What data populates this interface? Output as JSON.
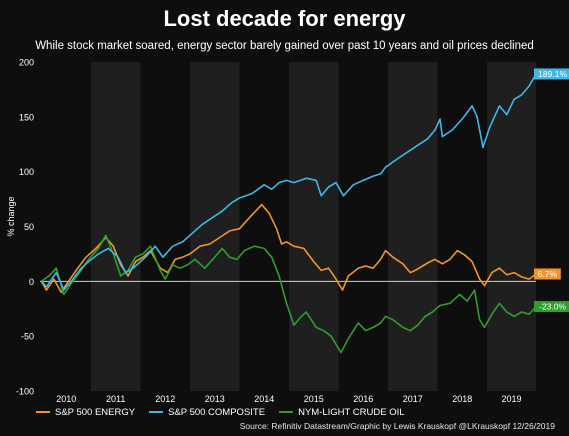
{
  "header": {
    "title": "Lost decade for energy",
    "subtitle": "While stock market soared, energy sector barely gained over past 10 years and oil prices declined"
  },
  "source": "Source: Refinitiv Datastream/Graphic by Lewis Krauskopf @LKrauskopf  12/26/2019",
  "colors": {
    "background": "#0e0e0e",
    "band": "#1f1f1f",
    "zero_line": "#cfcfcf",
    "energy": "#f0952e",
    "composite": "#3fb8e6",
    "crude": "#2f9e2f"
  },
  "chart_data": {
    "type": "line",
    "title": "Lost decade for energy",
    "subtitle": "While stock market soared, energy sector barely gained over past 10 years and oil prices declined",
    "xlabel": "",
    "ylabel": "% change",
    "xlim": [
      2009.97,
      2019.99
    ],
    "ylim": [
      -100,
      200
    ],
    "yticks": [
      200,
      150,
      100,
      50,
      0,
      -50,
      -100
    ],
    "xticks": [
      "2010",
      "2011",
      "2012",
      "2013",
      "2014",
      "2015",
      "2016",
      "2017",
      "2018",
      "2019"
    ],
    "shaded_years": [
      "2011",
      "2013",
      "2015",
      "2017",
      "2019"
    ],
    "zero_line": true,
    "legend_position": "bottom",
    "series": [
      {
        "name": "S&P 500 ENERGY",
        "color_key": "energy",
        "end_label": "6.7%",
        "points": [
          [
            2010.0,
            0
          ],
          [
            2010.1,
            -8
          ],
          [
            2010.25,
            2
          ],
          [
            2010.4,
            -10
          ],
          [
            2010.5,
            -3
          ],
          [
            2010.7,
            10
          ],
          [
            2010.9,
            22
          ],
          [
            2011.1,
            30
          ],
          [
            2011.3,
            40
          ],
          [
            2011.45,
            32
          ],
          [
            2011.6,
            15
          ],
          [
            2011.75,
            5
          ],
          [
            2011.9,
            18
          ],
          [
            2012.05,
            22
          ],
          [
            2012.2,
            28
          ],
          [
            2012.4,
            12
          ],
          [
            2012.55,
            8
          ],
          [
            2012.7,
            20
          ],
          [
            2012.85,
            22
          ],
          [
            2013.0,
            25
          ],
          [
            2013.2,
            32
          ],
          [
            2013.4,
            34
          ],
          [
            2013.6,
            40
          ],
          [
            2013.8,
            46
          ],
          [
            2014.0,
            48
          ],
          [
            2014.2,
            58
          ],
          [
            2014.45,
            70
          ],
          [
            2014.6,
            62
          ],
          [
            2014.75,
            48
          ],
          [
            2014.85,
            34
          ],
          [
            2014.95,
            36
          ],
          [
            2015.1,
            32
          ],
          [
            2015.3,
            30
          ],
          [
            2015.5,
            18
          ],
          [
            2015.65,
            10
          ],
          [
            2015.8,
            12
          ],
          [
            2015.95,
            2
          ],
          [
            2016.08,
            -8
          ],
          [
            2016.2,
            5
          ],
          [
            2016.4,
            12
          ],
          [
            2016.55,
            14
          ],
          [
            2016.7,
            12
          ],
          [
            2016.85,
            20
          ],
          [
            2016.95,
            28
          ],
          [
            2017.1,
            22
          ],
          [
            2017.3,
            16
          ],
          [
            2017.45,
            8
          ],
          [
            2017.55,
            10
          ],
          [
            2017.7,
            14
          ],
          [
            2017.85,
            18
          ],
          [
            2017.95,
            20
          ],
          [
            2018.1,
            16
          ],
          [
            2018.25,
            20
          ],
          [
            2018.4,
            28
          ],
          [
            2018.55,
            24
          ],
          [
            2018.7,
            18
          ],
          [
            2018.85,
            2
          ],
          [
            2018.95,
            -4
          ],
          [
            2019.1,
            8
          ],
          [
            2019.25,
            12
          ],
          [
            2019.4,
            6
          ],
          [
            2019.55,
            8
          ],
          [
            2019.7,
            4
          ],
          [
            2019.85,
            2
          ],
          [
            2019.99,
            6.7
          ]
        ]
      },
      {
        "name": "S&P 500 COMPOSITE",
        "color_key": "composite",
        "end_label": "189.1%",
        "points": [
          [
            2010.0,
            0
          ],
          [
            2010.1,
            -5
          ],
          [
            2010.3,
            8
          ],
          [
            2010.45,
            -8
          ],
          [
            2010.6,
            0
          ],
          [
            2010.8,
            12
          ],
          [
            2010.95,
            18
          ],
          [
            2011.15,
            25
          ],
          [
            2011.35,
            30
          ],
          [
            2011.55,
            22
          ],
          [
            2011.7,
            8
          ],
          [
            2011.85,
            12
          ],
          [
            2011.95,
            16
          ],
          [
            2012.1,
            22
          ],
          [
            2012.3,
            32
          ],
          [
            2012.45,
            22
          ],
          [
            2012.65,
            32
          ],
          [
            2012.85,
            36
          ],
          [
            2013.0,
            42
          ],
          [
            2013.25,
            52
          ],
          [
            2013.45,
            58
          ],
          [
            2013.65,
            64
          ],
          [
            2013.85,
            72
          ],
          [
            2014.0,
            76
          ],
          [
            2014.25,
            80
          ],
          [
            2014.5,
            88
          ],
          [
            2014.65,
            84
          ],
          [
            2014.8,
            90
          ],
          [
            2014.95,
            92
          ],
          [
            2015.1,
            90
          ],
          [
            2015.35,
            94
          ],
          [
            2015.55,
            92
          ],
          [
            2015.65,
            78
          ],
          [
            2015.8,
            86
          ],
          [
            2015.95,
            90
          ],
          [
            2016.1,
            78
          ],
          [
            2016.3,
            88
          ],
          [
            2016.5,
            92
          ],
          [
            2016.7,
            96
          ],
          [
            2016.85,
            98
          ],
          [
            2016.95,
            104
          ],
          [
            2017.2,
            112
          ],
          [
            2017.4,
            118
          ],
          [
            2017.6,
            124
          ],
          [
            2017.8,
            130
          ],
          [
            2017.95,
            138
          ],
          [
            2018.05,
            148
          ],
          [
            2018.1,
            132
          ],
          [
            2018.3,
            138
          ],
          [
            2018.5,
            148
          ],
          [
            2018.7,
            160
          ],
          [
            2018.8,
            150
          ],
          [
            2018.92,
            122
          ],
          [
            2019.05,
            140
          ],
          [
            2019.25,
            160
          ],
          [
            2019.4,
            152
          ],
          [
            2019.55,
            166
          ],
          [
            2019.7,
            170
          ],
          [
            2019.85,
            178
          ],
          [
            2019.99,
            189.1
          ]
        ]
      },
      {
        "name": "NYM-LIGHT CRUDE OIL",
        "color_key": "crude",
        "end_label": "-23.0%",
        "points": [
          [
            2010.0,
            0
          ],
          [
            2010.15,
            5
          ],
          [
            2010.3,
            12
          ],
          [
            2010.45,
            -12
          ],
          [
            2010.6,
            -2
          ],
          [
            2010.8,
            10
          ],
          [
            2010.95,
            20
          ],
          [
            2011.15,
            30
          ],
          [
            2011.3,
            42
          ],
          [
            2011.45,
            25
          ],
          [
            2011.6,
            5
          ],
          [
            2011.75,
            10
          ],
          [
            2011.9,
            22
          ],
          [
            2012.05,
            25
          ],
          [
            2012.2,
            32
          ],
          [
            2012.4,
            10
          ],
          [
            2012.5,
            2
          ],
          [
            2012.65,
            15
          ],
          [
            2012.8,
            12
          ],
          [
            2012.95,
            15
          ],
          [
            2013.1,
            20
          ],
          [
            2013.3,
            12
          ],
          [
            2013.5,
            22
          ],
          [
            2013.65,
            30
          ],
          [
            2013.8,
            22
          ],
          [
            2013.95,
            20
          ],
          [
            2014.1,
            28
          ],
          [
            2014.3,
            32
          ],
          [
            2014.5,
            30
          ],
          [
            2014.65,
            22
          ],
          [
            2014.8,
            5
          ],
          [
            2014.95,
            -20
          ],
          [
            2015.1,
            -40
          ],
          [
            2015.25,
            -32
          ],
          [
            2015.35,
            -28
          ],
          [
            2015.55,
            -42
          ],
          [
            2015.7,
            -45
          ],
          [
            2015.85,
            -50
          ],
          [
            2016.05,
            -65
          ],
          [
            2016.2,
            -52
          ],
          [
            2016.4,
            -38
          ],
          [
            2016.55,
            -45
          ],
          [
            2016.7,
            -42
          ],
          [
            2016.85,
            -38
          ],
          [
            2016.95,
            -32
          ],
          [
            2017.1,
            -35
          ],
          [
            2017.3,
            -42
          ],
          [
            2017.45,
            -45
          ],
          [
            2017.6,
            -40
          ],
          [
            2017.75,
            -32
          ],
          [
            2017.9,
            -28
          ],
          [
            2018.05,
            -22
          ],
          [
            2018.25,
            -20
          ],
          [
            2018.45,
            -12
          ],
          [
            2018.6,
            -18
          ],
          [
            2018.75,
            -8
          ],
          [
            2018.85,
            -35
          ],
          [
            2018.95,
            -42
          ],
          [
            2019.1,
            -30
          ],
          [
            2019.25,
            -20
          ],
          [
            2019.4,
            -28
          ],
          [
            2019.55,
            -32
          ],
          [
            2019.7,
            -28
          ],
          [
            2019.85,
            -30
          ],
          [
            2019.99,
            -23.0
          ]
        ]
      }
    ]
  }
}
